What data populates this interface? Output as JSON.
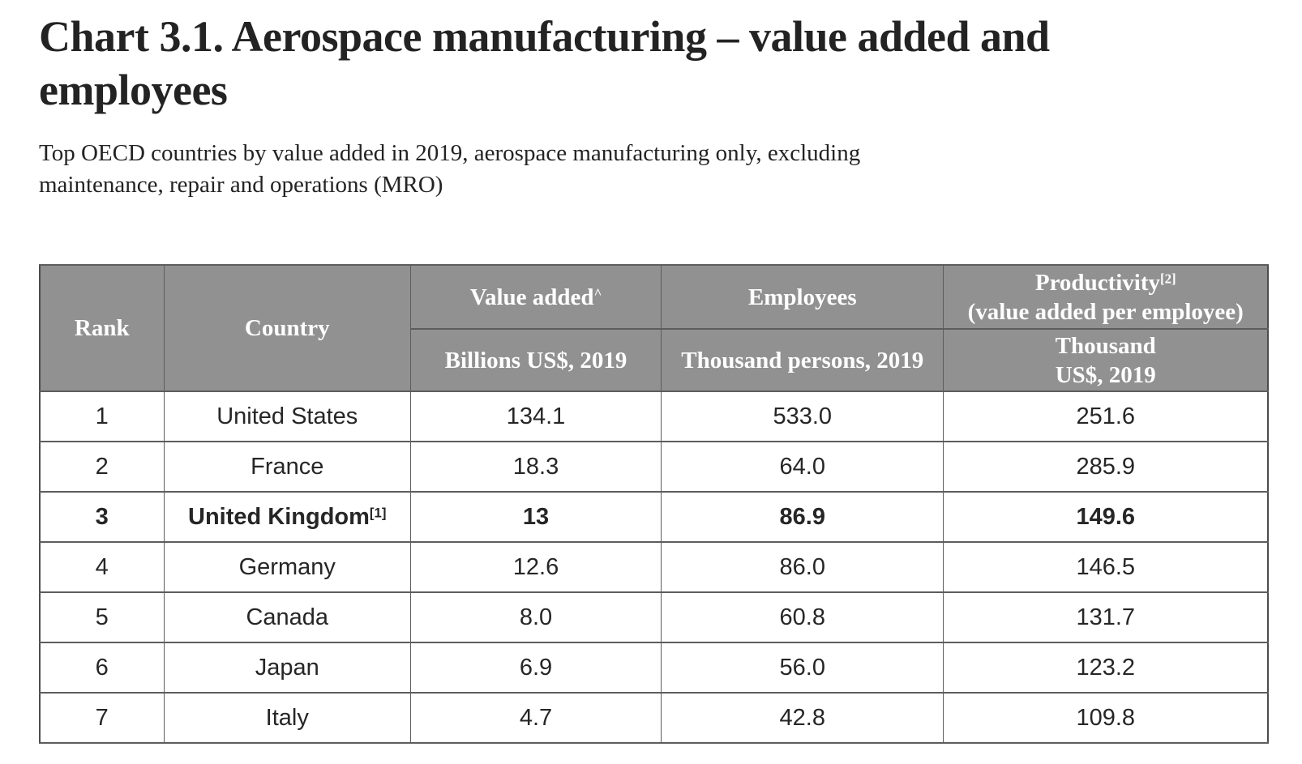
{
  "header": {
    "title_lines": [
      "Chart 3.1. Aerospace manufacturing – value added and",
      "employees"
    ],
    "subtitle_lines": [
      "Top OECD countries by value added in 2019, aerospace manufacturing only, excluding",
      "maintenance, repair and operations (MRO)"
    ]
  },
  "table": {
    "header": {
      "rank": "Rank",
      "country": "Country",
      "value_added": "Value added",
      "value_added_sup": "^",
      "value_added_sub": "Billions US$, 2019",
      "employees": "Employees",
      "employees_sub": "Thousand persons, 2019",
      "productivity": "Productivity",
      "productivity_sup": "[2]",
      "productivity_line2": "(value added per employee)",
      "productivity_sub_lines": [
        "Thousand",
        "US$, 2019"
      ]
    },
    "rows": [
      {
        "rank": "1",
        "country": "United States",
        "sup": "",
        "value_added": "134.1",
        "employees": "533.0",
        "productivity": "251.6",
        "bold": false
      },
      {
        "rank": "2",
        "country": "France",
        "sup": "",
        "value_added": "18.3",
        "employees": "64.0",
        "productivity": "285.9",
        "bold": false
      },
      {
        "rank": "3",
        "country": "United Kingdom",
        "sup": "[1]",
        "value_added": "13",
        "employees": "86.9",
        "productivity": "149.6",
        "bold": true
      },
      {
        "rank": "4",
        "country": "Germany",
        "sup": "",
        "value_added": "12.6",
        "employees": "86.0",
        "productivity": "146.5",
        "bold": false
      },
      {
        "rank": "5",
        "country": "Canada",
        "sup": "",
        "value_added": "8.0",
        "employees": "60.8",
        "productivity": "131.7",
        "bold": false
      },
      {
        "rank": "6",
        "country": "Japan",
        "sup": "",
        "value_added": "6.9",
        "employees": "56.0",
        "productivity": "123.2",
        "bold": false
      },
      {
        "rank": "7",
        "country": "Italy",
        "sup": "",
        "value_added": "4.7",
        "employees": "42.8",
        "productivity": "109.8",
        "bold": false
      }
    ]
  },
  "colors": {
    "header_bg": "#919191",
    "header_text": "#ffffff",
    "border": "#5d5d5d",
    "outer_border": "#4c4c4c",
    "body_text": "#262626",
    "title_text": "#232323",
    "page_bg": "#ffffff"
  }
}
